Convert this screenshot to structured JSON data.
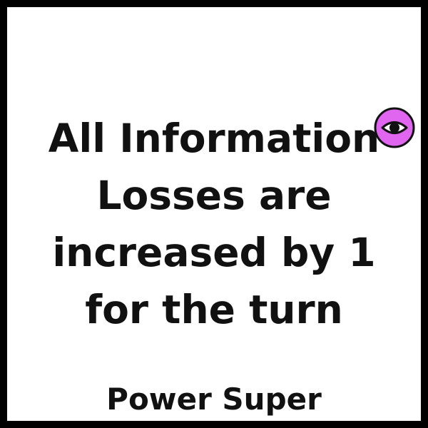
{
  "card": {
    "text_lines": [
      "All Information",
      "Losses are",
      "increased by 1",
      "for the turn"
    ],
    "footer": "Power Super",
    "icon": "eye-icon",
    "colors": {
      "border": "#000000",
      "background": "#ffffff",
      "icon_fill": "#e066f0",
      "icon_stroke": "#111111"
    }
  }
}
